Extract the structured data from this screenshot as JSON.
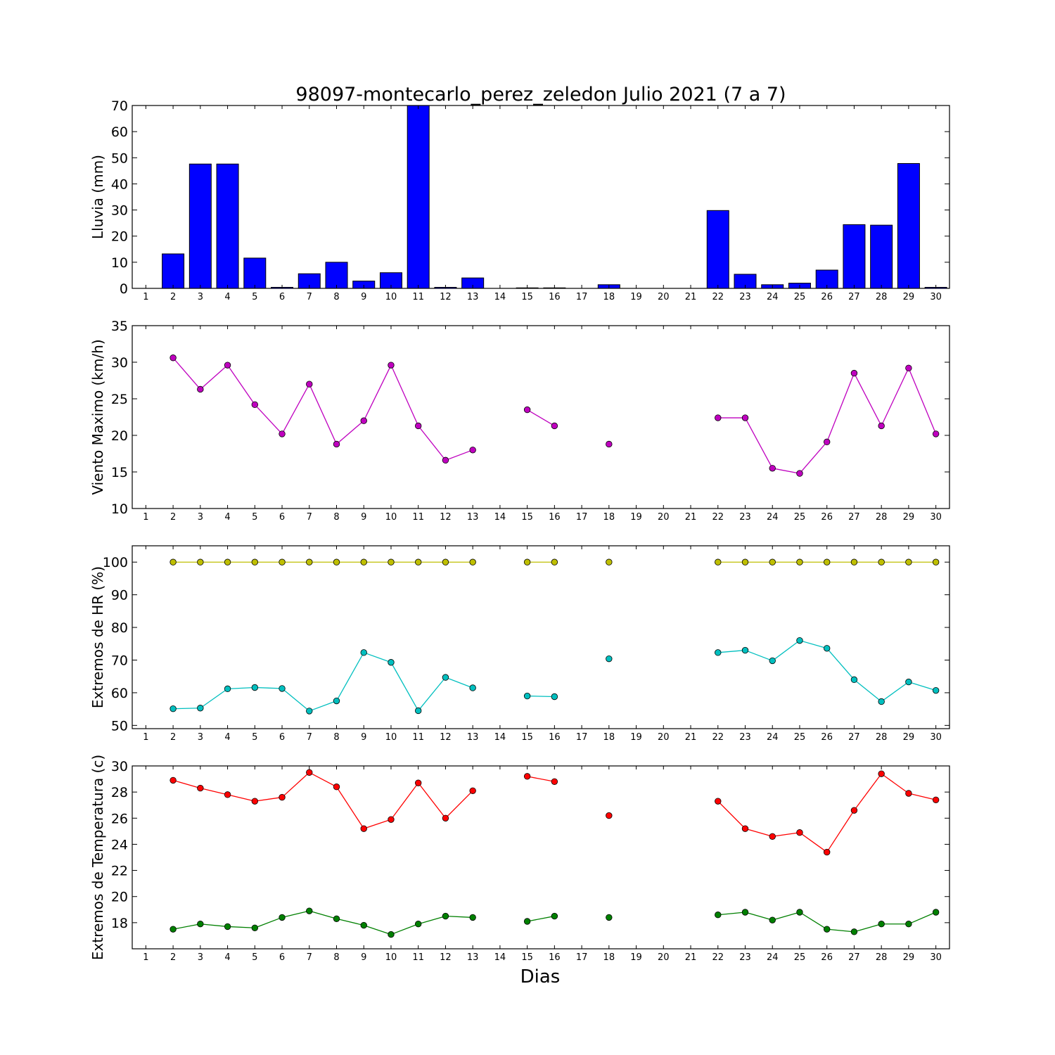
{
  "title": "98097-montecarlo_perez_zeledon Julio 2021  (7 a 7)",
  "xlabel": "Dias",
  "chart_data": [
    {
      "type": "bar",
      "ylabel": "Lluvia (mm)",
      "ylim": [
        0,
        70
      ],
      "yticks": [
        0,
        10,
        20,
        30,
        40,
        50,
        60,
        70
      ],
      "x": [
        1,
        2,
        3,
        4,
        5,
        6,
        7,
        8,
        9,
        10,
        11,
        12,
        13,
        14,
        15,
        16,
        17,
        18,
        19,
        20,
        21,
        22,
        23,
        24,
        25,
        26,
        27,
        28,
        29,
        30
      ],
      "series": [
        {
          "color": "#0000ff",
          "values": [
            0,
            13.2,
            47.6,
            47.6,
            11.6,
            0.4,
            5.6,
            10,
            2.8,
            6,
            70,
            0.4,
            4,
            0,
            0.2,
            0.2,
            0,
            1.4,
            0,
            0,
            0,
            29.8,
            5.4,
            1.4,
            2,
            7,
            24.4,
            24.2,
            47.8,
            0.4
          ]
        }
      ],
      "grid": false
    },
    {
      "type": "line",
      "ylabel": "Viento Maximo (km/h)",
      "ylim": [
        10,
        35
      ],
      "yticks": [
        10,
        15,
        20,
        25,
        30,
        35
      ],
      "x": [
        1,
        2,
        3,
        4,
        5,
        6,
        7,
        8,
        9,
        10,
        11,
        12,
        13,
        14,
        15,
        16,
        17,
        18,
        19,
        20,
        21,
        22,
        23,
        24,
        25,
        26,
        27,
        28,
        29,
        30
      ],
      "series": [
        {
          "color": "#bf00bf",
          "values": [
            null,
            30.6,
            26.3,
            29.6,
            24.2,
            20.2,
            27,
            18.8,
            22,
            29.6,
            21.3,
            16.6,
            18,
            null,
            23.5,
            21.3,
            null,
            18.8,
            null,
            null,
            null,
            22.4,
            22.4,
            15.5,
            14.8,
            19.1,
            28.5,
            21.3,
            29.2,
            20.2
          ]
        }
      ],
      "grid": false
    },
    {
      "type": "line",
      "ylabel": "Extremos de HR (%)",
      "ylim": [
        49,
        105
      ],
      "yticks": [
        50,
        60,
        70,
        80,
        90,
        100
      ],
      "x": [
        1,
        2,
        3,
        4,
        5,
        6,
        7,
        8,
        9,
        10,
        11,
        12,
        13,
        14,
        15,
        16,
        17,
        18,
        19,
        20,
        21,
        22,
        23,
        24,
        25,
        26,
        27,
        28,
        29,
        30
      ],
      "series": [
        {
          "color": "#bfbf00",
          "values": [
            null,
            100,
            100,
            100,
            100,
            100,
            100,
            100,
            100,
            100,
            100,
            100,
            100,
            null,
            100,
            100,
            null,
            100,
            null,
            null,
            null,
            100,
            100,
            100,
            100,
            100,
            100,
            100,
            100,
            100
          ]
        },
        {
          "color": "#00bfbf",
          "values": [
            null,
            55.1,
            55.3,
            61.2,
            61.6,
            61.3,
            54.4,
            57.5,
            72.3,
            69.3,
            54.5,
            64.7,
            61.5,
            null,
            59,
            58.8,
            null,
            70.4,
            null,
            null,
            null,
            72.3,
            73,
            69.8,
            76,
            73.6,
            64,
            57.3,
            63.3,
            60.7
          ]
        }
      ],
      "grid": false
    },
    {
      "type": "line",
      "ylabel": "Extremos de Temperatura (c)",
      "ylim": [
        16,
        30
      ],
      "yticks": [
        18,
        20,
        22,
        24,
        26,
        28,
        30
      ],
      "x": [
        1,
        2,
        3,
        4,
        5,
        6,
        7,
        8,
        9,
        10,
        11,
        12,
        13,
        14,
        15,
        16,
        17,
        18,
        19,
        20,
        21,
        22,
        23,
        24,
        25,
        26,
        27,
        28,
        29,
        30
      ],
      "series": [
        {
          "color": "#ff0000",
          "values": [
            null,
            28.9,
            28.3,
            27.8,
            27.3,
            27.6,
            29.5,
            28.4,
            25.2,
            25.9,
            28.7,
            26,
            28.1,
            null,
            29.2,
            28.8,
            null,
            26.2,
            null,
            null,
            null,
            27.3,
            25.2,
            24.6,
            24.9,
            23.4,
            26.6,
            29.4,
            27.9,
            27.4
          ]
        },
        {
          "color": "#008000",
          "values": [
            null,
            17.5,
            17.9,
            17.7,
            17.6,
            18.4,
            18.9,
            18.3,
            17.8,
            17.1,
            17.9,
            18.5,
            18.4,
            null,
            18.1,
            18.5,
            null,
            18.4,
            null,
            null,
            null,
            18.6,
            18.8,
            18.2,
            18.8,
            17.5,
            17.3,
            17.9,
            17.9,
            18.8
          ]
        }
      ],
      "grid": false
    }
  ]
}
